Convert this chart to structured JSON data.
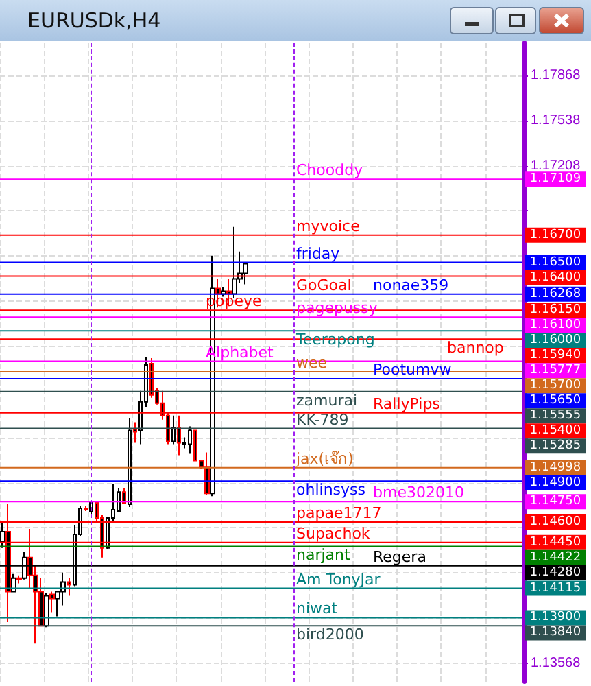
{
  "chart_data": {
    "type": "candlestick",
    "title": "EURUSDk,H4",
    "categories": [
      null,
      null,
      null,
      null,
      null,
      null,
      null,
      null,
      null,
      null,
      null,
      null,
      null,
      null,
      null,
      null,
      null,
      null,
      null,
      null,
      null,
      null,
      null,
      null,
      null,
      null,
      null,
      null,
      null,
      null,
      null,
      null,
      null,
      null,
      null,
      null,
      null,
      null,
      null,
      null,
      null,
      null,
      null,
      null,
      null,
      null,
      null,
      null,
      null,
      null,
      null,
      null,
      null,
      null,
      null,
      null,
      null,
      null,
      null,
      null,
      null,
      null,
      null,
      null,
      null,
      null,
      null,
      null,
      null,
      null,
      null,
      null,
      null,
      null,
      null,
      null,
      null,
      null,
      null,
      null,
      null,
      null,
      null,
      null,
      null,
      null,
      null,
      null,
      null,
      null,
      null,
      null,
      null,
      null,
      null
    ],
    "ohlc": [
      [
        1.1446,
        1.1461,
        1.1441,
        1.1453
      ],
      [
        1.1453,
        1.1473,
        1.1387,
        1.1409
      ],
      [
        1.1409,
        1.1422,
        1.1409,
        1.1419
      ],
      [
        1.1419,
        1.1421,
        1.1415,
        1.1418
      ],
      [
        1.1419,
        1.1438,
        1.1418,
        1.1434
      ],
      [
        1.1434,
        1.1455,
        1.1411,
        1.1421
      ],
      [
        1.1421,
        1.1428,
        1.1371,
        1.1409
      ],
      [
        1.1409,
        1.1419,
        1.1384,
        1.1384
      ],
      [
        1.1384,
        1.1408,
        1.1383,
        1.1406
      ],
      [
        1.1407,
        1.1409,
        1.1394,
        1.1404
      ],
      [
        1.1404,
        1.1409,
        1.1391,
        1.1409
      ],
      [
        1.1409,
        1.1423,
        1.1399,
        1.1416
      ],
      [
        1.1416,
        1.1419,
        1.1406,
        1.1414
      ],
      [
        1.1414,
        1.1458,
        1.1413,
        1.1451
      ],
      [
        1.1451,
        1.1472,
        1.145,
        1.147
      ],
      [
        1.147,
        1.1472,
        1.1468,
        1.1469
      ],
      [
        1.1468,
        1.1475,
        1.1465,
        1.1474
      ],
      [
        1.1474,
        1.1475,
        1.146,
        1.1463
      ],
      [
        1.1463,
        1.1465,
        1.1434,
        1.1441
      ],
      [
        1.1441,
        1.1463,
        1.144,
        1.1463
      ],
      [
        1.1463,
        1.1488,
        1.146,
        1.1469
      ],
      [
        1.1468,
        1.1485,
        1.1468,
        1.1482
      ],
      [
        1.1482,
        1.1485,
        1.1473,
        1.1474
      ],
      [
        1.1473,
        1.1536,
        1.1471,
        1.1527
      ],
      [
        1.1528,
        1.1533,
        1.1518,
        1.1526
      ],
      [
        1.1527,
        1.1556,
        1.1517,
        1.1548
      ],
      [
        1.1548,
        1.1581,
        1.1544,
        1.1575
      ],
      [
        1.1576,
        1.158,
        1.1551,
        1.1553
      ],
      [
        1.1556,
        1.1558,
        1.1546,
        1.1547
      ],
      [
        1.1547,
        1.1556,
        1.1535,
        1.1538
      ],
      [
        1.1538,
        1.154,
        1.1517,
        1.1519
      ],
      [
        1.1519,
        1.1538,
        1.1517,
        1.1529
      ],
      [
        1.1529,
        1.1538,
        1.1509,
        1.1518
      ],
      [
        1.1517,
        1.1522,
        1.1514,
        1.1518
      ],
      [
        1.1517,
        1.153,
        1.151,
        1.1527
      ],
      [
        1.1527,
        1.1527,
        1.1505,
        1.1505
      ],
      [
        1.1505,
        1.1505,
        1.1499,
        1.15
      ],
      [
        1.15,
        1.1511,
        1.148,
        1.1481
      ],
      [
        1.1481,
        1.1655,
        1.1479,
        1.1631
      ],
      [
        1.1631,
        1.1638,
        1.1617,
        1.1627
      ],
      [
        1.1627,
        1.1632,
        1.1625,
        1.1629
      ],
      [
        1.1629,
        1.1638,
        1.1618,
        1.1627
      ],
      [
        1.1627,
        1.1676,
        1.1624,
        1.1638
      ],
      [
        1.1638,
        1.1658,
        1.1635,
        1.1642
      ],
      [
        1.1642,
        1.1649,
        1.1634,
        1.1649
      ],
      null,
      null,
      null,
      null,
      null,
      null,
      null,
      null,
      null,
      null,
      null,
      null,
      null,
      null,
      null,
      null,
      null,
      null,
      null,
      null,
      null,
      null,
      null,
      null,
      null,
      null,
      null,
      null,
      null,
      null,
      null,
      null,
      null,
      null,
      null,
      null,
      null,
      null,
      null,
      null,
      null,
      null,
      null,
      null,
      null,
      null,
      null,
      null,
      null,
      null
    ],
    "ylim": [
      1.1343,
      1.1811
    ],
    "yticks": [
      1.17868,
      1.17538,
      1.17208,
      {
        "value": 1.16878,
        "label": null
      },
      {
        "value": 1.16548,
        "label": null
      },
      {
        "value": 1.16218,
        "label": null
      },
      {
        "value": 1.15888,
        "label": null
      },
      {
        "value": 1.15558,
        "label": null
      },
      {
        "value": 1.15218,
        "label": null
      },
      {
        "value": 1.14888,
        "label": null
      },
      {
        "value": 1.14558,
        "label": null
      },
      {
        "value": 1.14228,
        "label": null
      },
      {
        "value": 1.13898,
        "label": null
      },
      1.13568
    ],
    "grid": true,
    "ref_lines": [
      {
        "axis": "y",
        "value": 1.17109,
        "label": "Chooddy",
        "color": "#ff00ff"
      },
      {
        "axis": "y",
        "value": 1.167,
        "label": "myvoice",
        "color": "#ff0000"
      },
      {
        "axis": "y",
        "value": 1.165,
        "label": "friday",
        "color": "#0000ff"
      },
      {
        "axis": "y",
        "value": 1.164,
        "label": "GoGoal",
        "color": "#ff0000"
      },
      {
        "axis": "y",
        "value": 1.16268,
        "label": "nonae359",
        "color": "#0000ff"
      },
      {
        "axis": "y",
        "value": 1.1615,
        "label": "popeye",
        "color": "#ff0000"
      },
      {
        "axis": "y",
        "value": 1.161,
        "label": "pagepussy",
        "color": "#ff00ff"
      },
      {
        "axis": "y",
        "value": 1.16,
        "label": "Teerapong",
        "color": "#008080"
      },
      {
        "axis": "y",
        "value": 1.1594,
        "label": "bannop",
        "color": "#ff0000"
      },
      {
        "axis": "y",
        "value": 1.15777,
        "label": "Alphabet",
        "color": "#ff00ff"
      },
      {
        "axis": "y",
        "value": 1.157,
        "label": "wee",
        "color": "#d2691e"
      },
      {
        "axis": "y",
        "value": 1.1565,
        "label": "Pootumvw",
        "color": "#0000ff"
      },
      {
        "axis": "y",
        "value": 1.15555,
        "label": "zamurai",
        "color": "#2f4f4f"
      },
      {
        "axis": "y",
        "value": 1.154,
        "label": "RallyPips",
        "color": "#ff0000"
      },
      {
        "axis": "y",
        "value": 1.15285,
        "label": "KK-789",
        "color": "#2f4f4f"
      },
      {
        "axis": "y",
        "value": 1.14998,
        "label": "jax(เจ๊ก)",
        "color": "#d2691e"
      },
      {
        "axis": "y",
        "value": 1.149,
        "label": "ohlinsyss",
        "color": "#0000ff"
      },
      {
        "axis": "y",
        "value": 1.1475,
        "label": "bme302010",
        "color": "#ff00ff"
      },
      {
        "axis": "y",
        "value": 1.146,
        "label": "papae1717",
        "color": "#ff0000"
      },
      {
        "axis": "y",
        "value": 1.1445,
        "label": "Supachok",
        "color": "#ff0000"
      },
      {
        "axis": "y",
        "value": 1.14422,
        "label": "narjant",
        "color": "#008000"
      },
      {
        "axis": "y",
        "value": 1.1428,
        "label": "Regera",
        "color": "#000000"
      },
      {
        "axis": "y",
        "value": 1.14115,
        "label": "Am TonyJar",
        "color": "#008080"
      },
      {
        "axis": "y",
        "value": 1.139,
        "label": "niwat",
        "color": "#008080"
      },
      {
        "axis": "y",
        "value": 1.1384,
        "label": "bird2000",
        "color": "#2f4f4f"
      }
    ],
    "annotations": [
      "1.17109",
      "1.16700",
      "1.16500",
      "1.16400",
      "1.16268",
      "1.16150",
      "1.16100",
      "1.16000",
      "1.15940",
      "1.15777",
      "1.15700",
      "1.15650",
      "1.15555",
      "1.15400",
      "1.15285",
      "1.14998",
      "1.14900",
      "1.14750",
      "1.14600",
      "1.14450",
      "1.14422",
      "1.14280",
      "1.14115",
      "1.13900",
      "1.13840"
    ]
  }
}
